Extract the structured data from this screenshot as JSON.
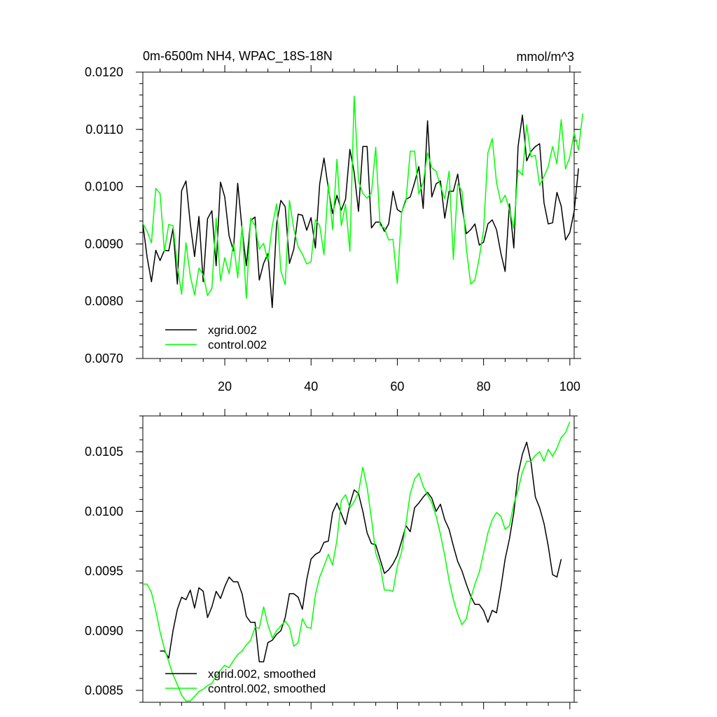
{
  "chart_data": [
    {
      "type": "line",
      "title": "0m-6500m NH4, WPAC_18S-18N",
      "units": "mmol/m^3",
      "xlabel": "",
      "ylabel": "",
      "xlim": [
        1,
        101
      ],
      "ylim": [
        0.007,
        0.012
      ],
      "xticks": [
        20,
        40,
        60,
        80,
        100
      ],
      "xtick_labels": [
        "20",
        "40",
        "60",
        "80",
        "100"
      ],
      "yticks": [
        0.007,
        0.008,
        0.009,
        0.01,
        0.011,
        0.012
      ],
      "ytick_labels": [
        "0.0070",
        "0.0080",
        "0.0090",
        "0.0100",
        "0.0110",
        "0.0120"
      ],
      "legend_position": "bottom-left",
      "series": [
        {
          "name": "xgrid.002",
          "color": "#000000",
          "x_start": 1,
          "values": [
            0.00935,
            0.00876,
            0.00834,
            0.00889,
            0.00871,
            0.00889,
            0.00888,
            0.00927,
            0.0083,
            0.00993,
            0.0101,
            0.00935,
            0.00878,
            0.00948,
            0.00834,
            0.00944,
            0.00958,
            0.00862,
            0.01008,
            0.00982,
            0.00914,
            0.00888,
            0.01006,
            0.00926,
            0.00862,
            0.00941,
            0.00947,
            0.00837,
            0.00866,
            0.00883,
            0.00789,
            0.00935,
            0.00976,
            0.00965,
            0.00866,
            0.00891,
            0.00952,
            0.0095,
            0.00924,
            0.00946,
            0.00893,
            0.01005,
            0.0105,
            0.00997,
            0.00953,
            0.00985,
            0.00959,
            0.00978,
            0.01065,
            0.01025,
            0.00957,
            0.0107,
            0.0107,
            0.00928,
            0.00938,
            0.00938,
            0.00922,
            0.00935,
            0.00992,
            0.0096,
            0.00955,
            0.00978,
            0.00982,
            0.01007,
            0.01035,
            0.00962,
            0.01115,
            0.00982,
            0.01005,
            0.0101,
            0.00945,
            0.00992,
            0.00992,
            0.01022,
            0.00965,
            0.00918,
            0.00925,
            0.00935,
            0.00898,
            0.00903,
            0.00935,
            0.00942,
            0.00925,
            0.00884,
            0.00852,
            0.0097,
            0.00893,
            0.0107,
            0.01125,
            0.01045,
            0.01062,
            0.0107,
            0.01075,
            0.00972,
            0.00935,
            0.00937,
            0.0099,
            0.00966,
            0.00907,
            0.0092,
            0.00957,
            0.01032
          ]
        },
        {
          "name": "control.002",
          "color": "#00ff00",
          "x_start": 1,
          "values": [
            0.00936,
            0.00922,
            0.00902,
            0.00997,
            0.00988,
            0.00887,
            0.00934,
            0.00932,
            0.00862,
            0.00812,
            0.00902,
            0.00844,
            0.00811,
            0.00858,
            0.00846,
            0.0081,
            0.00822,
            0.00945,
            0.00836,
            0.00876,
            0.00848,
            0.00902,
            0.00841,
            0.00931,
            0.00805,
            0.00945,
            0.00932,
            0.00891,
            0.00901,
            0.0087,
            0.00931,
            0.0097,
            0.00853,
            0.00829,
            0.00976,
            0.00926,
            0.00895,
            0.00882,
            0.00865,
            0.00869,
            0.00942,
            0.00932,
            0.00881,
            0.01005,
            0.00925,
            0.01048,
            0.00932,
            0.00969,
            0.00887,
            0.01158,
            0.0101,
            0.00988,
            0.0098,
            0.00989,
            0.01069,
            0.00932,
            0.00928,
            0.00907,
            0.00908,
            0.00831,
            0.00955,
            0.00975,
            0.01062,
            0.01062,
            0.00987,
            0.01007,
            0.01059,
            0.01033,
            0.01027,
            0.01001,
            0.00979,
            0.01027,
            0.00873,
            0.01005,
            0.00992,
            0.00892,
            0.0083,
            0.00837,
            0.00876,
            0.00924,
            0.01059,
            0.01084,
            0.01007,
            0.00972,
            0.00985,
            0.0096,
            0.00927,
            0.01029,
            0.0102,
            0.01108,
            0.01052,
            0.01055,
            0.01002,
            0.01018,
            0.01035,
            0.0107,
            0.0104,
            0.01117,
            0.01031,
            0.01052,
            0.01094,
            0.01064,
            0.01128
          ]
        }
      ]
    },
    {
      "type": "line",
      "title": "",
      "xlabel": "",
      "ylabel": "",
      "xlim": [
        1,
        101
      ],
      "ylim": [
        0.0084,
        0.0108
      ],
      "xticks": [
        20,
        40,
        60,
        80,
        100
      ],
      "xtick_labels": [],
      "yticks": [
        0.0085,
        0.009,
        0.0095,
        0.01,
        0.0105
      ],
      "ytick_labels": [
        "0.0085",
        "0.0090",
        "0.0095",
        "0.0100",
        "0.0105"
      ],
      "legend_position": "bottom-left",
      "series": [
        {
          "name": "xgrid.002, smoothed",
          "color": "#000000",
          "x_start": 5,
          "values": [
            0.00883,
            0.00883,
            0.00877,
            0.009,
            0.00918,
            0.00928,
            0.00926,
            0.00934,
            0.00919,
            0.00936,
            0.00933,
            0.00911,
            0.0092,
            0.00933,
            0.00927,
            0.00937,
            0.00945,
            0.00941,
            0.00941,
            0.00931,
            0.00912,
            0.00907,
            0.00907,
            0.00874,
            0.00874,
            0.0089,
            0.00892,
            0.00897,
            0.009,
            0.00911,
            0.00931,
            0.00931,
            0.00928,
            0.00918,
            0.00943,
            0.0096,
            0.00964,
            0.00966,
            0.00974,
            0.00975,
            0.00999,
            0.01007,
            0.00998,
            0.00989,
            0.01006,
            0.01018,
            0.01015,
            0.01,
            0.00982,
            0.00973,
            0.00972,
            0.0096,
            0.00948,
            0.00951,
            0.00956,
            0.00963,
            0.00975,
            0.00988,
            0.00983,
            0.01003,
            0.01007,
            0.01012,
            0.01016,
            0.01011,
            0.01,
            0.01006,
            0.00993,
            0.00985,
            0.00971,
            0.00958,
            0.0095,
            0.00939,
            0.00929,
            0.00922,
            0.00922,
            0.00917,
            0.00907,
            0.00917,
            0.00915,
            0.00936,
            0.0096,
            0.00977,
            0.00999,
            0.01031,
            0.01048,
            0.01058,
            0.01041,
            0.01012,
            0.01003,
            0.0099,
            0.00971,
            0.00947,
            0.00945,
            0.0096
          ]
        },
        {
          "name": "control.002, smoothed",
          "color": "#00ff00",
          "x_start": 1,
          "values": [
            0.00939,
            0.00939,
            0.00932,
            0.00917,
            0.00899,
            0.00885,
            0.00874,
            0.00863,
            0.00855,
            0.00846,
            0.00841,
            0.00841,
            0.00845,
            0.00849,
            0.00851,
            0.00854,
            0.00856,
            0.00862,
            0.00867,
            0.00871,
            0.00869,
            0.00875,
            0.0088,
            0.00883,
            0.00888,
            0.00892,
            0.00903,
            0.00902,
            0.0092,
            0.00905,
            0.00894,
            0.009,
            0.00904,
            0.00908,
            0.00903,
            0.00887,
            0.0089,
            0.0091,
            0.00903,
            0.00902,
            0.0093,
            0.00945,
            0.00954,
            0.00964,
            0.00955,
            0.00976,
            0.01009,
            0.01014,
            0.01003,
            0.01008,
            0.01016,
            0.01037,
            0.0102,
            0.00994,
            0.00965,
            0.00955,
            0.00934,
            0.00934,
            0.00933,
            0.00954,
            0.00966,
            0.0099,
            0.01015,
            0.01027,
            0.01032,
            0.01021,
            0.01014,
            0.01007,
            0.00996,
            0.00981,
            0.00963,
            0.00942,
            0.00926,
            0.00914,
            0.00905,
            0.0091,
            0.00927,
            0.00939,
            0.00949,
            0.00965,
            0.00982,
            0.00993,
            0.00999,
            0.00996,
            0.00985,
            0.00988,
            0.01006,
            0.01018,
            0.01033,
            0.01042,
            0.01042,
            0.01047,
            0.0105,
            0.01042,
            0.01052,
            0.01046,
            0.01053,
            0.01062,
            0.01066,
            0.01075
          ]
        }
      ]
    }
  ]
}
